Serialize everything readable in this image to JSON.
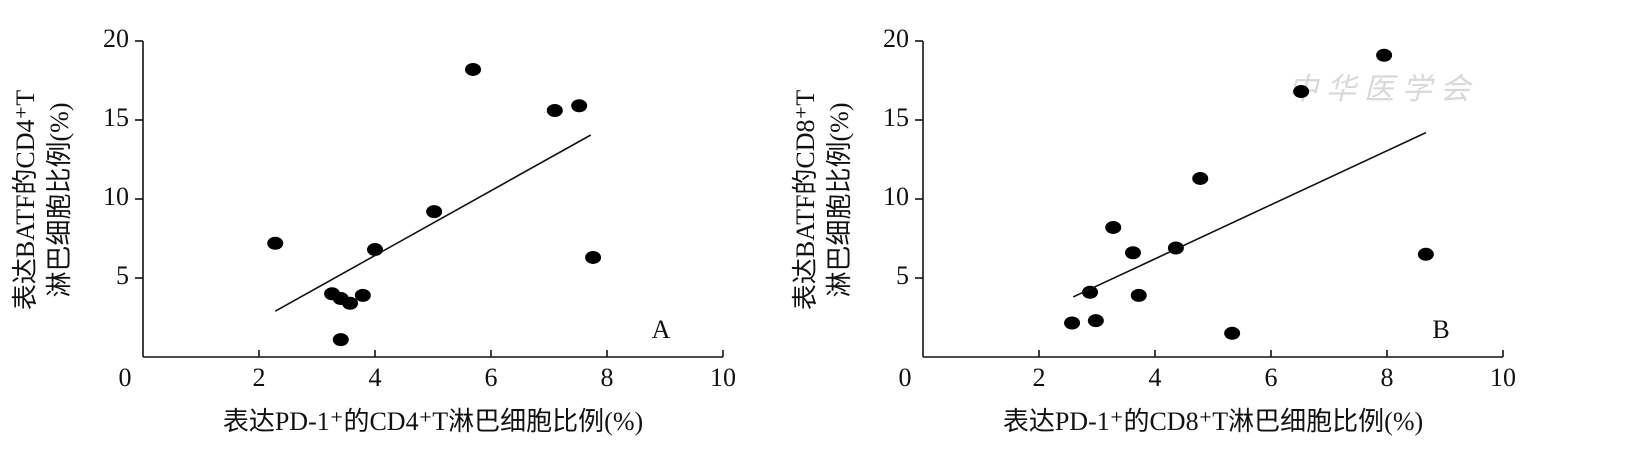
{
  "chart_data": [
    {
      "type": "scatter",
      "color": "#000000",
      "xlabel": "表达PD-1⁺的CD4⁺T淋巴细胞比例(%)",
      "ylabel": [
        "表达BATF的CD4⁺T",
        "淋巴细胞比例(%)"
      ],
      "annotation": "A",
      "x": [
        2.28,
        3.26,
        3.41,
        3.57,
        3.41,
        3.79,
        4.0,
        5.02,
        5.69,
        7.1,
        7.52,
        7.76
      ],
      "y": [
        7.2,
        4.0,
        3.7,
        3.4,
        1.1,
        3.9,
        6.8,
        9.2,
        18.2,
        15.6,
        15.9,
        6.3
      ],
      "trendline": {
        "x": [
          2.28,
          7.72
        ],
        "y": [
          2.9,
          14.05
        ]
      },
      "xlim": [
        0,
        10
      ],
      "ylim": [
        0,
        20
      ],
      "xticks": [
        0,
        2,
        4,
        6,
        8,
        10
      ],
      "yticks": [
        5,
        10,
        15,
        20
      ]
    },
    {
      "type": "scatter",
      "color": "#000000",
      "xlabel": "表达PD-1⁺的CD8⁺T淋巴细胞比例(%)",
      "ylabel": [
        "表达BATF的CD8⁺T",
        "淋巴细胞比例(%)"
      ],
      "annotation": "B",
      "watermark": "中华医学会",
      "x": [
        2.57,
        2.98,
        2.88,
        3.28,
        3.62,
        3.72,
        4.36,
        4.78,
        5.33,
        6.52,
        7.95,
        8.67
      ],
      "y": [
        2.15,
        2.3,
        4.1,
        8.2,
        6.6,
        3.9,
        6.9,
        11.3,
        1.5,
        16.8,
        19.1,
        6.5
      ],
      "trendline": {
        "x": [
          2.59,
          8.67
        ],
        "y": [
          3.8,
          14.2
        ]
      },
      "xlim": [
        0,
        10
      ],
      "ylim": [
        0,
        20
      ],
      "xticks": [
        0,
        2,
        4,
        6,
        8,
        10
      ],
      "yticks": [
        5,
        10,
        15,
        20
      ]
    }
  ]
}
